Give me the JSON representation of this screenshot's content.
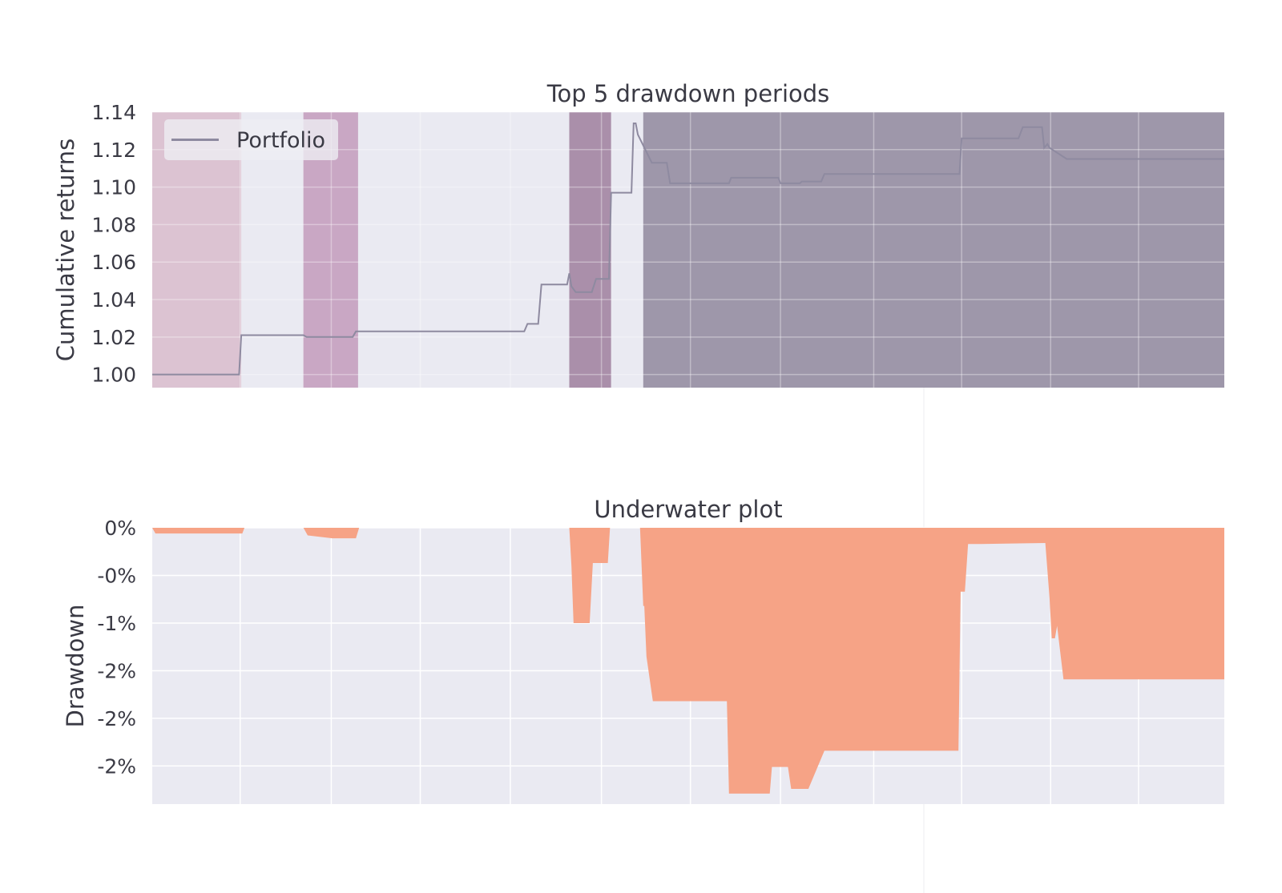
{
  "chart_data": [
    {
      "type": "line",
      "title": "Top 5 drawdown periods",
      "ylabel": "Cumulative returns",
      "xlabel": "",
      "xlim": [
        0,
        1000
      ],
      "ylim": [
        0.993,
        1.14
      ],
      "y_ticks": [
        "1.00",
        "1.02",
        "1.04",
        "1.06",
        "1.08",
        "1.10",
        "1.12",
        "1.14"
      ],
      "y_tick_values": [
        1.0,
        1.02,
        1.04,
        1.06,
        1.08,
        1.1,
        1.12,
        1.14
      ],
      "x_gridlines": [
        82,
        167,
        250,
        334,
        419,
        502,
        586,
        673,
        755,
        838,
        920
      ],
      "grid": true,
      "legend": {
        "position": "upper-left",
        "entries": [
          "Portfolio"
        ]
      },
      "colors": {
        "background": "#eaeaf2",
        "grid": "#ffffff",
        "line": "#8e8aa0"
      },
      "shaded_periods": [
        {
          "start": 0,
          "end": 83,
          "color": "#dcc3d2"
        },
        {
          "start": 141,
          "end": 192,
          "color": "#c9a7c4"
        },
        {
          "start": 389,
          "end": 428,
          "color": "#aa8faa"
        },
        {
          "start": 458,
          "end": 1000,
          "color": "#9e97aa"
        }
      ],
      "series": [
        {
          "name": "Portfolio",
          "x": [
            0,
            81,
            83,
            85,
            141,
            144,
            187,
            190,
            347,
            350,
            360,
            363,
            367,
            387,
            389,
            391,
            395,
            410,
            414,
            426,
            428,
            430,
            447,
            449,
            451,
            453,
            466,
            470,
            480,
            483,
            538,
            540,
            584,
            586,
            604,
            606,
            624,
            627,
            646,
            648,
            670,
            673,
            753,
            755,
            808,
            812,
            830,
            832,
            835,
            837,
            853,
            1000
          ],
          "y": [
            1.0,
            1.0,
            1.021,
            1.021,
            1.021,
            1.02,
            1.02,
            1.023,
            1.023,
            1.027,
            1.027,
            1.048,
            1.048,
            1.048,
            1.054,
            1.047,
            1.044,
            1.044,
            1.051,
            1.051,
            1.097,
            1.097,
            1.097,
            1.134,
            1.134,
            1.128,
            1.113,
            1.113,
            1.113,
            1.102,
            1.102,
            1.105,
            1.105,
            1.102,
            1.102,
            1.103,
            1.103,
            1.107,
            1.107,
            1.107,
            1.107,
            1.107,
            1.107,
            1.126,
            1.126,
            1.132,
            1.132,
            1.121,
            1.123,
            1.121,
            1.115,
            1.115
          ]
        }
      ]
    },
    {
      "type": "area",
      "title": "Underwater plot",
      "ylabel": "Drawdown",
      "xlabel": "",
      "xlim": [
        0,
        1000
      ],
      "ylim": [
        -0.029,
        0.0
      ],
      "y_ticks": [
        "0%",
        "-0%",
        "-1%",
        "-2%",
        "-2%",
        "-2%"
      ],
      "y_tick_values": [
        0.0,
        -0.005,
        -0.01,
        -0.015,
        -0.02,
        -0.025
      ],
      "x_gridlines": [
        82,
        167,
        250,
        334,
        419,
        502,
        586,
        673,
        755,
        838,
        920
      ],
      "grid": true,
      "colors": {
        "background": "#eaeaf2",
        "grid": "#ffffff",
        "fill": "#f6a386"
      },
      "series": [
        {
          "name": "",
          "x": [
            0,
            3,
            84,
            86,
            141,
            145,
            168,
            190,
            193,
            389,
            391,
            393,
            408,
            411,
            413,
            425,
            427,
            428,
            455,
            458,
            459,
            461,
            467,
            470,
            536,
            538,
            576,
            578,
            593,
            596,
            608,
            612,
            627,
            630,
            644,
            646,
            752,
            754,
            758,
            761,
            769,
            771,
            773,
            833,
            837,
            839,
            842,
            844,
            850,
            860,
            875,
            877,
            1000
          ],
          "y": [
            0,
            -0.0006,
            -0.0006,
            0,
            0,
            -0.0008,
            -0.0011,
            -0.0011,
            0,
            0,
            -0.004,
            -0.01,
            -0.01,
            -0.0037,
            -0.0037,
            -0.0037,
            0,
            0,
            0,
            -0.0082,
            -0.0082,
            -0.0135,
            -0.0182,
            -0.0182,
            -0.0182,
            -0.0279,
            -0.0279,
            -0.0251,
            -0.0251,
            -0.0274,
            -0.0274,
            -0.0274,
            -0.0234,
            -0.0234,
            -0.0234,
            -0.0234,
            -0.0234,
            -0.0067,
            -0.0067,
            -0.0017,
            -0.0017,
            -0.0017,
            -0.0017,
            -0.0016,
            -0.0074,
            -0.0116,
            -0.0116,
            -0.0103,
            -0.0159,
            -0.0159,
            -0.0159,
            -0.0159,
            -0.0159
          ]
        }
      ]
    }
  ]
}
